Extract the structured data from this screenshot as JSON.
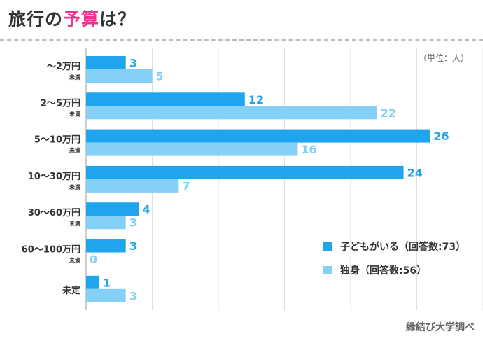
{
  "title": {
    "pre": "旅行の",
    "highlight": "予算",
    "post": "は？"
  },
  "unit": "（単位：人）",
  "source": "縁結び大学調べ",
  "colors": {
    "series1": "#1ea5ee",
    "series2": "#85d0f7",
    "accent": "#e8368f"
  },
  "chart_data": {
    "type": "bar",
    "orientation": "horizontal",
    "categories": [
      {
        "main": "〜2万円",
        "sub": "未満"
      },
      {
        "main": "2〜5万円",
        "sub": "未満"
      },
      {
        "main": "5〜10万円",
        "sub": "未満"
      },
      {
        "main": "10〜30万円",
        "sub": "未満"
      },
      {
        "main": "30〜60万円",
        "sub": "未満"
      },
      {
        "main": "60〜100万円",
        "sub": "未満"
      },
      {
        "main": "未定",
        "sub": ""
      }
    ],
    "series": [
      {
        "name": "子どもがいる（回答数:73）",
        "values": [
          3,
          12,
          26,
          24,
          4,
          3,
          1
        ]
      },
      {
        "name": "独身（回答数:56）",
        "values": [
          5,
          22,
          16,
          7,
          3,
          0,
          3
        ]
      }
    ],
    "xlim": [
      0,
      30
    ],
    "grid": true,
    "legend_position": "bottom-right"
  }
}
